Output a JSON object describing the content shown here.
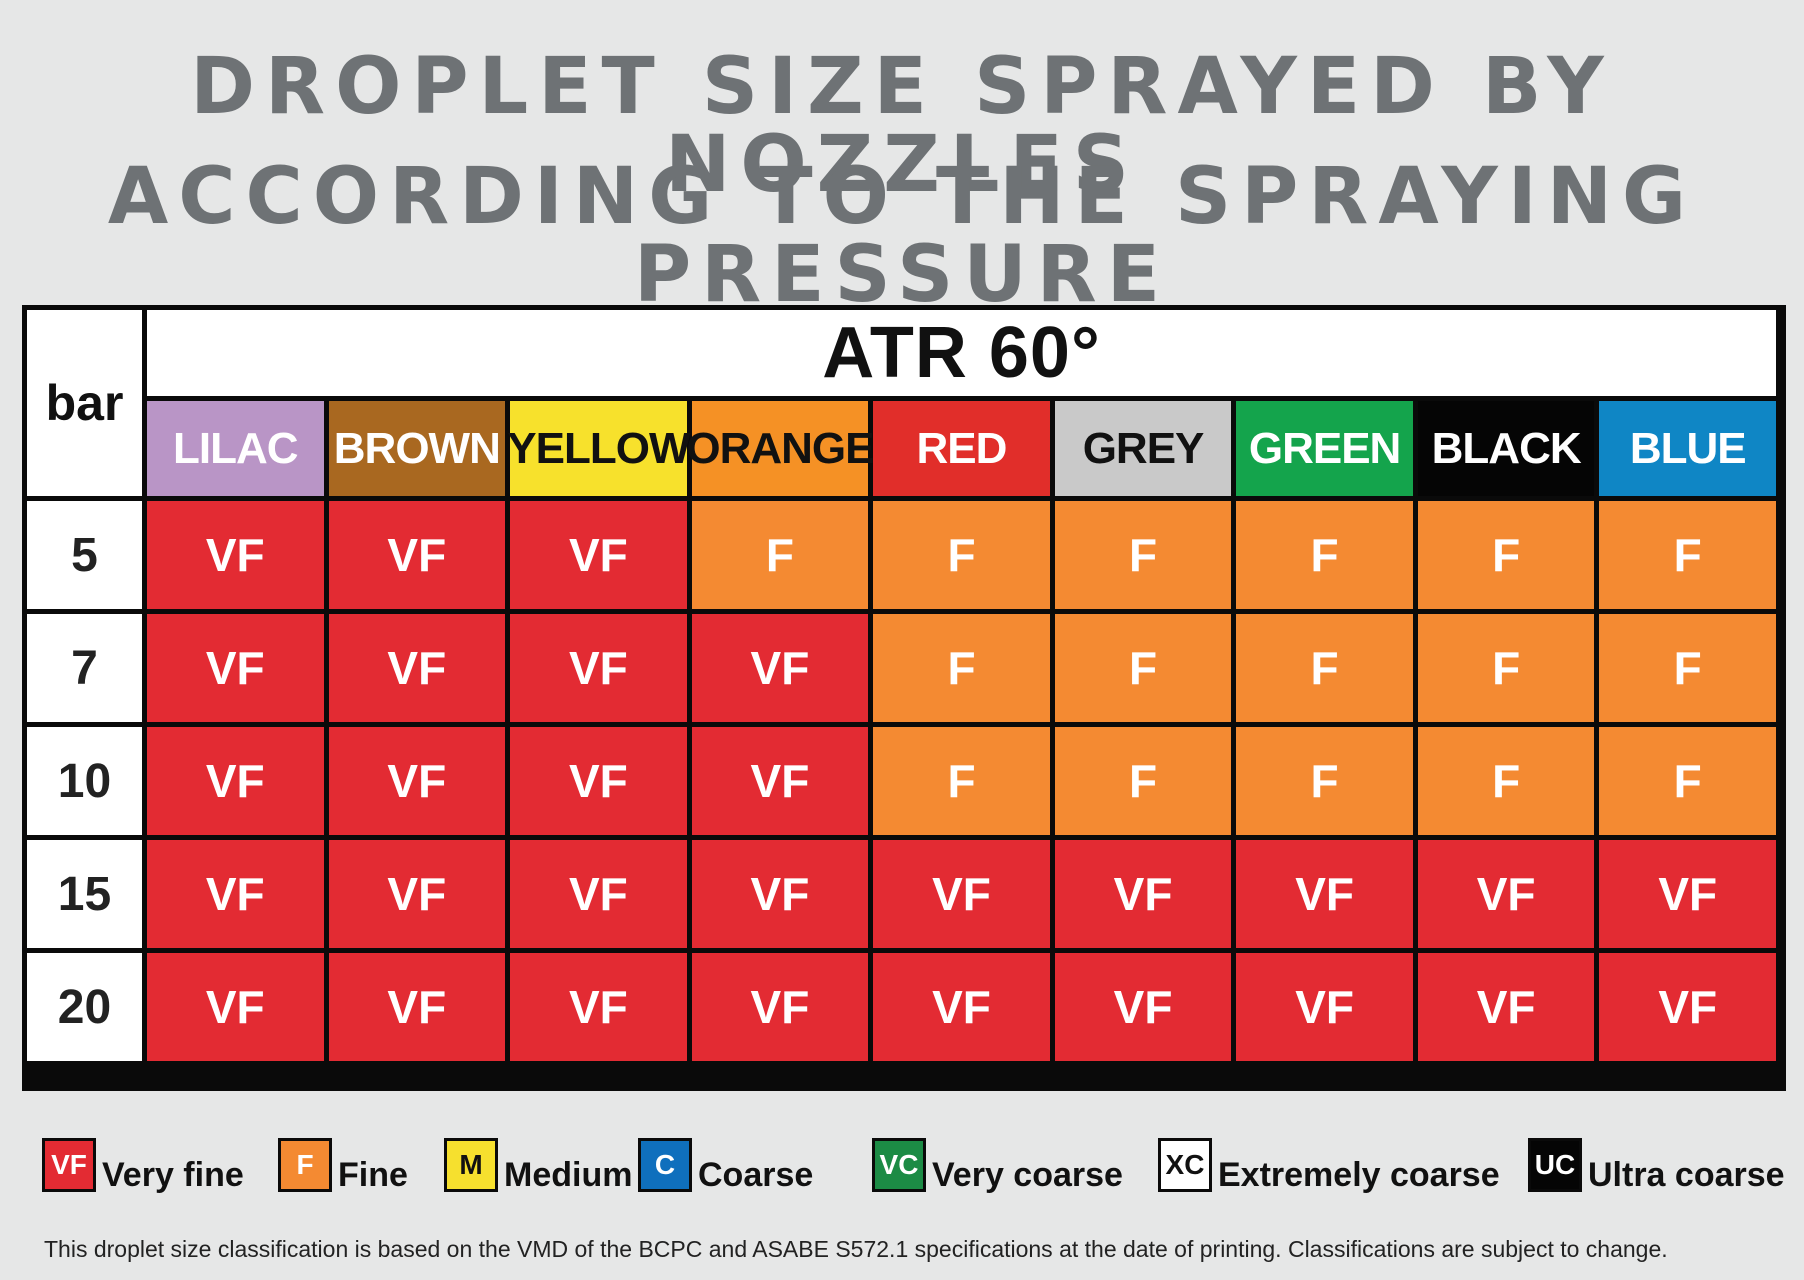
{
  "title": {
    "line1": "DROPLET SIZE SPRAYED BY NOZZLES",
    "line2": "ACCORDING TO THE SPRAYING PRESSURE"
  },
  "chart_data": {
    "type": "table",
    "row_header": "bar",
    "group_header": "ATR 60°",
    "columns": [
      {
        "label": "LILAC",
        "color": "#b995c6",
        "text_color": "#ffffff"
      },
      {
        "label": "BROWN",
        "color": "#a96820",
        "text_color": "#ffffff"
      },
      {
        "label": "YELLOW",
        "color": "#f7e12c",
        "text_color": "#111111"
      },
      {
        "label": "ORANGE",
        "color": "#f59125",
        "text_color": "#111111"
      },
      {
        "label": "RED",
        "color": "#e12e2a",
        "text_color": "#ffffff"
      },
      {
        "label": "GREY",
        "color": "#c9c9c9",
        "text_color": "#111111"
      },
      {
        "label": "GREEN",
        "color": "#14a44c",
        "text_color": "#ffffff"
      },
      {
        "label": "BLACK",
        "color": "#050505",
        "text_color": "#ffffff"
      },
      {
        "label": "BLUE",
        "color": "#0f86c5",
        "text_color": "#ffffff"
      }
    ],
    "rows": [
      {
        "pressure": "5",
        "values": [
          "VF",
          "VF",
          "VF",
          "F",
          "F",
          "F",
          "F",
          "F",
          "F"
        ]
      },
      {
        "pressure": "7",
        "values": [
          "VF",
          "VF",
          "VF",
          "VF",
          "F",
          "F",
          "F",
          "F",
          "F"
        ]
      },
      {
        "pressure": "10",
        "values": [
          "VF",
          "VF",
          "VF",
          "VF",
          "F",
          "F",
          "F",
          "F",
          "F"
        ]
      },
      {
        "pressure": "15",
        "values": [
          "VF",
          "VF",
          "VF",
          "VF",
          "VF",
          "VF",
          "VF",
          "VF",
          "VF"
        ]
      },
      {
        "pressure": "20",
        "values": [
          "VF",
          "VF",
          "VF",
          "VF",
          "VF",
          "VF",
          "VF",
          "VF",
          "VF"
        ]
      }
    ],
    "class_colors": {
      "VF": "#e32b33",
      "F": "#f48a32"
    }
  },
  "legend": [
    {
      "code": "VF",
      "label": "Very fine",
      "color": "#e32b33",
      "text_color": "#ffffff"
    },
    {
      "code": "F",
      "label": "Fine",
      "color": "#f48a32",
      "text_color": "#ffffff"
    },
    {
      "code": "M",
      "label": "Medium",
      "color": "#f6e02e",
      "text_color": "#111111"
    },
    {
      "code": "C",
      "label": "Coarse",
      "color": "#0f6fbd",
      "text_color": "#ffffff"
    },
    {
      "code": "VC",
      "label": "Very coarse",
      "color": "#1c8b45",
      "text_color": "#ffffff"
    },
    {
      "code": "XC",
      "label": "Extremely coarse",
      "color": "#ffffff",
      "text_color": "#111111"
    },
    {
      "code": "UC",
      "label": "Ultra coarse",
      "color": "#050505",
      "text_color": "#ffffff"
    }
  ],
  "footnote": "This droplet size classification is based on the VMD of the BCPC and ASABE S572.1  specifications at the date of  printing. Classifications are subject to change."
}
